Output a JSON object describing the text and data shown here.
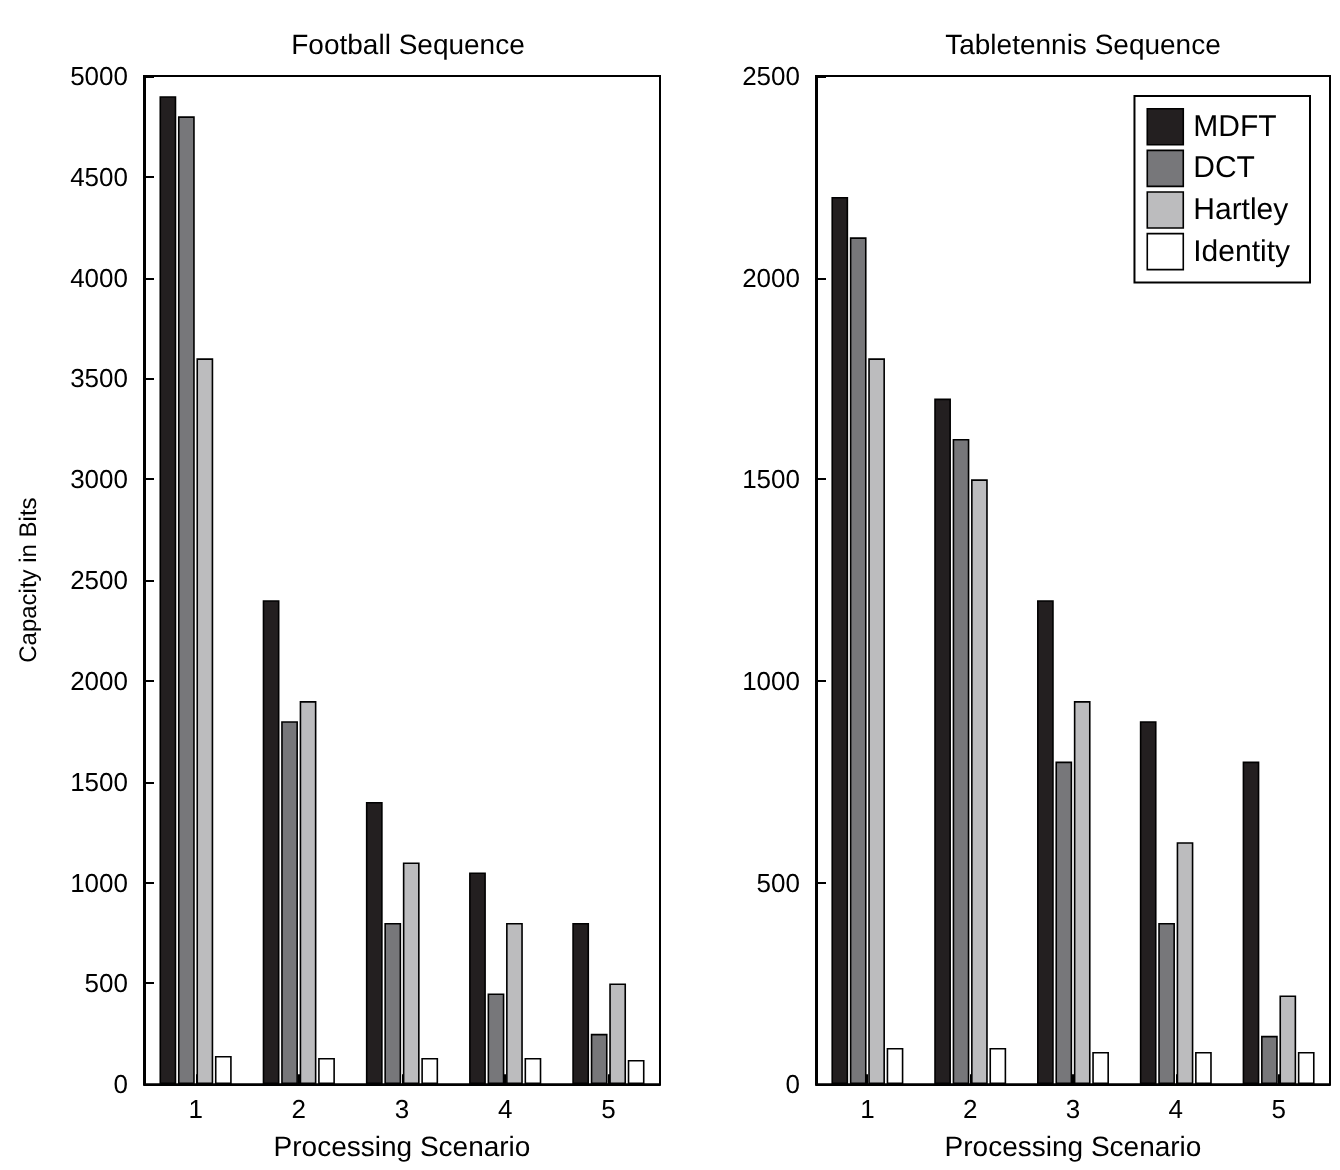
{
  "chart_data": [
    {
      "type": "bar",
      "title": "Football Sequence",
      "xlabel": "Processing Scenario",
      "ylabel": "Capacity in Bits",
      "categories": [
        "1",
        "2",
        "3",
        "4",
        "5"
      ],
      "series": [
        {
          "color": "#231f20",
          "values": [
            4900,
            2400,
            1400,
            1050,
            800
          ]
        },
        {
          "color": "#77777a",
          "values": [
            4800,
            1800,
            800,
            450,
            250
          ]
        },
        {
          "color": "#bcbcbe",
          "values": [
            3600,
            1900,
            1100,
            800,
            500
          ]
        },
        {
          "color": "#ffffff",
          "values": [
            140,
            130,
            130,
            130,
            120
          ]
        }
      ],
      "ylim": [
        0,
        5000
      ],
      "yticks": [
        0,
        500,
        1000,
        1500,
        2000,
        2500,
        3000,
        3500,
        4000,
        4500,
        5000
      ],
      "grid": false,
      "legend": false
    },
    {
      "type": "bar",
      "title": "Tabletennis Sequence",
      "xlabel": "Processing Scenario",
      "categories": [
        "1",
        "2",
        "3",
        "4",
        "5"
      ],
      "series": [
        {
          "name": "MDFT",
          "color": "#231f20",
          "values": [
            2200,
            1700,
            1200,
            900,
            800
          ]
        },
        {
          "name": "DCT",
          "color": "#77777a",
          "values": [
            2100,
            1600,
            800,
            400,
            120
          ]
        },
        {
          "name": "Hartley",
          "color": "#bcbcbe",
          "values": [
            1800,
            1500,
            950,
            600,
            220
          ]
        },
        {
          "name": "Identity",
          "color": "#ffffff",
          "values": [
            90,
            90,
            80,
            80,
            80
          ]
        }
      ],
      "ylim": [
        0,
        2500
      ],
      "yticks": [
        0,
        500,
        1000,
        1500,
        2000,
        2500
      ],
      "grid": false,
      "legend": "top right"
    }
  ]
}
